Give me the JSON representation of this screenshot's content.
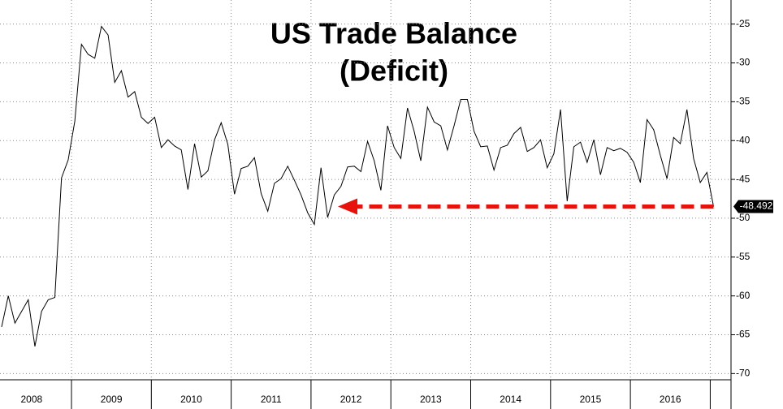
{
  "chart_data": {
    "type": "line",
    "title": "US Trade Balance",
    "subtitle": "(Deficit)",
    "categories": [
      null,
      null,
      null,
      null,
      null,
      "2008",
      null,
      null,
      null,
      null,
      null,
      null,
      null,
      null,
      null,
      null,
      null,
      "2009",
      null,
      null,
      null,
      null,
      null,
      null,
      null,
      null,
      null,
      null,
      null,
      "2010",
      null,
      null,
      null,
      null,
      null,
      null,
      null,
      null,
      null,
      null,
      null,
      "2011",
      null,
      null,
      null,
      null,
      null,
      null,
      null,
      null,
      null,
      null,
      null,
      "2012",
      null,
      null,
      null,
      null,
      null,
      null,
      null,
      null,
      null,
      null,
      null,
      "2013",
      null,
      null,
      null,
      null,
      null,
      null,
      null,
      null,
      null,
      null,
      null,
      "2014",
      null,
      null,
      null,
      null,
      null,
      null,
      null,
      null,
      null,
      null,
      null,
      "2015",
      null,
      null,
      null,
      null,
      null,
      null,
      null,
      null,
      null,
      null,
      null,
      "2016",
      null,
      null,
      null,
      null,
      null,
      null
    ],
    "series": [
      {
        "color": "#000000",
        "values": [
          -64,
          -60,
          -63.5,
          -62,
          -60.5,
          -66.5,
          -62,
          -60.5,
          -60.2,
          -44.8,
          -42.5,
          -37.5,
          -27.6,
          -28.9,
          -29.4,
          -25.3,
          -26.4,
          -32.5,
          -31,
          -34.4,
          -33.7,
          -37,
          -37.8,
          -37,
          -40.9,
          -39.9,
          -40.7,
          -41.2,
          -46.3,
          -40.4,
          -44.7,
          -43.9,
          -39.9,
          -37.7,
          -40.5,
          -46.9,
          -43.6,
          -43.3,
          -42.2,
          -46.8,
          -49.1,
          -45.5,
          -44.9,
          -43.3,
          -45.1,
          -47,
          -49.3,
          -50.8,
          -43.5,
          -49.9,
          -47,
          -45.9,
          -43.4,
          -43.3,
          -44,
          -40.1,
          -42.6,
          -46.4,
          -38.1,
          -40.9,
          -42.3,
          -35.8,
          -38.8,
          -42.6,
          -35.7,
          -37.6,
          -38.1,
          -41.2,
          -38.1,
          -34.7,
          -34.7,
          -38.8,
          -40.8,
          -40.7,
          -43.8,
          -40.9,
          -40.6,
          -39.1,
          -38.3,
          -41.4,
          -40.9,
          -39.9,
          -43.5,
          -41.7,
          -36,
          -47.8,
          -40.8,
          -40.2,
          -42.8,
          -39.9,
          -44.4,
          -40.9,
          -41.3,
          -41,
          -41.5,
          -42.8,
          -45.4,
          -37.3,
          -38.6,
          -41.9,
          -44.9,
          -39.6,
          -40.4,
          -36,
          -42.3,
          -45.4,
          -44.1,
          -48.492
        ]
      }
    ],
    "ylim": [
      -70.8,
      -21.9
    ],
    "yticks": [
      -25,
      -30,
      -35,
      -40,
      -45,
      -50,
      -55,
      -60,
      -65,
      -70
    ],
    "grid": true,
    "annotation_color": "#e8120c"
  }
}
